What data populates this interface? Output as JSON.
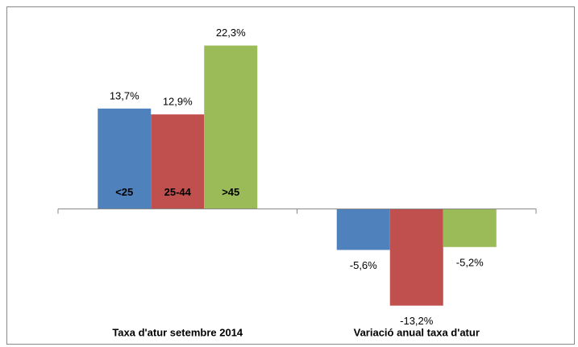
{
  "chart_data": {
    "type": "bar",
    "categories": [
      "Taxa d'atur setembre 2014",
      "Variació anual taxa d'atur"
    ],
    "series": [
      {
        "name": "<25",
        "color": "#4f81bd",
        "values": [
          13.7,
          -5.6
        ],
        "value_labels": [
          "13,7%",
          "-5,6%"
        ]
      },
      {
        "name": "25-44",
        "color": "#c0504d",
        "values": [
          12.9,
          -13.2
        ],
        "value_labels": [
          "12,9%",
          "-13,2%"
        ]
      },
      {
        "name": ">45",
        "color": "#9bbb59",
        "values": [
          22.3,
          -5.2
        ],
        "value_labels": [
          "22,3%",
          "-5,2%"
        ]
      }
    ],
    "ylim": [
      -15,
      25
    ]
  }
}
